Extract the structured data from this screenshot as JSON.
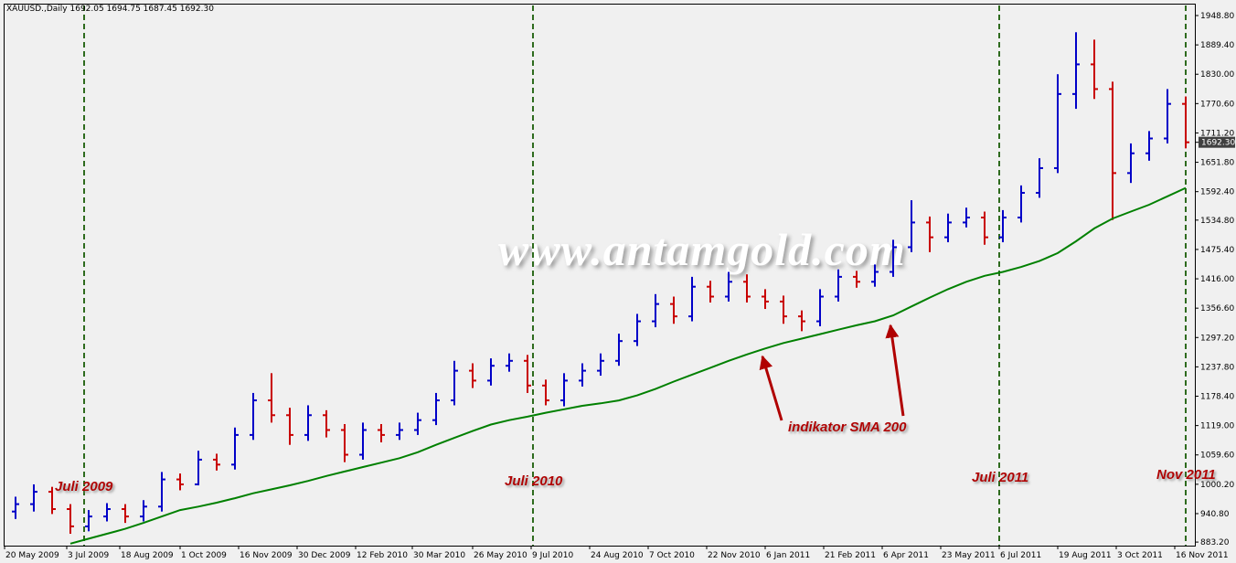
{
  "chart_data": {
    "type": "ohlc",
    "title": "XAUUSD.,Daily  1692.05 1694.75 1687.45 1692.30",
    "x": [
      6,
      16,
      26,
      36,
      46,
      56,
      66,
      76,
      86,
      96,
      106,
      116,
      126,
      136,
      146,
      156,
      166,
      176,
      186,
      196,
      206,
      216,
      226,
      236,
      246,
      256,
      266,
      276,
      286,
      296,
      306,
      316,
      326,
      336,
      346,
      356,
      366,
      376,
      386,
      396,
      406,
      416,
      426,
      436,
      446,
      456,
      466,
      476,
      486,
      496,
      506,
      516,
      526,
      536,
      546,
      556,
      566,
      576,
      586,
      596,
      606,
      616,
      626,
      636,
      646
    ],
    "ohlc": {
      "open": [
        945,
        960,
        985,
        950,
        915,
        935,
        950,
        935,
        955,
        1010,
        1000,
        1050,
        1040,
        1100,
        1170,
        1140,
        1100,
        1140,
        1110,
        1060,
        1110,
        1100,
        1110,
        1130,
        1170,
        1230,
        1210,
        1240,
        1250,
        1200,
        1170,
        1210,
        1230,
        1250,
        1290,
        1330,
        1365,
        1340,
        1400,
        1380,
        1410,
        1380,
        1370,
        1340,
        1330,
        1380,
        1420,
        1410,
        1430,
        1480,
        1530,
        1500,
        1530,
        1540,
        1500,
        1540,
        1590,
        1640,
        1790,
        1850,
        1800,
        1630,
        1670,
        1700,
        1770
      ],
      "high": [
        975,
        1000,
        995,
        960,
        948,
        962,
        960,
        968,
        1025,
        1022,
        1068,
        1062,
        1115,
        1185,
        1225,
        1155,
        1160,
        1150,
        1122,
        1125,
        1122,
        1125,
        1145,
        1185,
        1250,
        1245,
        1255,
        1265,
        1262,
        1212,
        1225,
        1245,
        1265,
        1305,
        1345,
        1385,
        1380,
        1420,
        1412,
        1430,
        1425,
        1395,
        1382,
        1352,
        1395,
        1435,
        1432,
        1445,
        1495,
        1575,
        1542,
        1548,
        1560,
        1552,
        1555,
        1605,
        1660,
        1830,
        1915,
        1900,
        1815,
        1690,
        1715,
        1800,
        1785
      ],
      "low": [
        930,
        945,
        940,
        900,
        905,
        925,
        922,
        925,
        945,
        988,
        998,
        1028,
        1030,
        1090,
        1125,
        1080,
        1088,
        1095,
        1045,
        1050,
        1085,
        1090,
        1100,
        1120,
        1160,
        1195,
        1200,
        1228,
        1185,
        1160,
        1158,
        1198,
        1220,
        1240,
        1280,
        1318,
        1325,
        1330,
        1368,
        1370,
        1368,
        1355,
        1325,
        1310,
        1320,
        1370,
        1398,
        1400,
        1420,
        1470,
        1470,
        1490,
        1520,
        1485,
        1490,
        1530,
        1580,
        1630,
        1760,
        1780,
        1535,
        1610,
        1655,
        1690,
        1680
      ],
      "close": [
        960,
        985,
        950,
        915,
        935,
        950,
        935,
        955,
        1010,
        1000,
        1050,
        1040,
        1100,
        1170,
        1140,
        1100,
        1140,
        1110,
        1060,
        1110,
        1100,
        1110,
        1130,
        1170,
        1230,
        1210,
        1240,
        1250,
        1200,
        1170,
        1210,
        1230,
        1250,
        1290,
        1330,
        1365,
        1340,
        1400,
        1380,
        1410,
        1380,
        1370,
        1340,
        1330,
        1380,
        1420,
        1410,
        1430,
        1480,
        1530,
        1500,
        1530,
        1540,
        1500,
        1540,
        1590,
        1640,
        1790,
        1850,
        1800,
        1630,
        1670,
        1700,
        1770,
        1692.3
      ]
    },
    "up_color": "#0000c8",
    "down_color": "#c80000",
    "sma": {
      "color": "#008000",
      "values": [
        null,
        null,
        null,
        880,
        890,
        900,
        910,
        922,
        935,
        948,
        955,
        963,
        972,
        982,
        990,
        998,
        1007,
        1017,
        1026,
        1035,
        1044,
        1053,
        1065,
        1080,
        1094,
        1108,
        1121,
        1130,
        1137,
        1145,
        1152,
        1159,
        1164,
        1170,
        1180,
        1193,
        1208,
        1222,
        1236,
        1250,
        1263,
        1275,
        1286,
        1295,
        1304,
        1313,
        1322,
        1330,
        1342,
        1360,
        1378,
        1395,
        1410,
        1422,
        1430,
        1440,
        1452,
        1468,
        1492,
        1518,
        1538,
        1552,
        1566,
        1583,
        1600
      ]
    },
    "current_price": {
      "value": 1692.3,
      "label": "1692.30"
    },
    "xlim": [
      0,
      651
    ],
    "ylim": [
      876,
      1971
    ],
    "xticks": [
      {
        "value": 0,
        "label": "20 May 2009"
      },
      {
        "value": 34,
        "label": "3 Jul 2009"
      },
      {
        "value": 63,
        "label": "18 Aug 2009"
      },
      {
        "value": 96,
        "label": "1 Oct 2009"
      },
      {
        "value": 128,
        "label": "16 Nov 2009"
      },
      {
        "value": 160,
        "label": "30 Dec 2009"
      },
      {
        "value": 192,
        "label": "12 Feb 2010"
      },
      {
        "value": 223,
        "label": "30 Mar 2010"
      },
      {
        "value": 256,
        "label": "26 May 2010"
      },
      {
        "value": 288,
        "label": "9 Jul 2010"
      },
      {
        "value": 320,
        "label": "24 Aug 2010"
      },
      {
        "value": 352,
        "label": "7 Oct 2010"
      },
      {
        "value": 384,
        "label": "22 Nov 2010"
      },
      {
        "value": 416,
        "label": "6 Jan 2011"
      },
      {
        "value": 448,
        "label": "21 Feb 2011"
      },
      {
        "value": 480,
        "label": "6 Apr 2011"
      },
      {
        "value": 512,
        "label": "23 May 2011"
      },
      {
        "value": 544,
        "label": "6 Jul 2011"
      },
      {
        "value": 576,
        "label": "19 Aug 2011"
      },
      {
        "value": 608,
        "label": "3 Oct 2011"
      },
      {
        "value": 640,
        "label": "16 Nov 2011"
      }
    ],
    "yticks": [
      {
        "value": 883.2,
        "label": "883.20"
      },
      {
        "value": 940.8,
        "label": "940.80"
      },
      {
        "value": 1000.2,
        "label": "1000.20"
      },
      {
        "value": 1059.6,
        "label": "1059.60"
      },
      {
        "value": 1119,
        "label": "1119.00"
      },
      {
        "value": 1178.4,
        "label": "1178.40"
      },
      {
        "value": 1237.8,
        "label": "1237.80"
      },
      {
        "value": 1297.2,
        "label": "1297.20"
      },
      {
        "value": 1356.6,
        "label": "1356.60"
      },
      {
        "value": 1416,
        "label": "1416.00"
      },
      {
        "value": 1475.4,
        "label": "1475.40"
      },
      {
        "value": 1534.8,
        "label": "1534.80"
      },
      {
        "value": 1592.4,
        "label": "1592.40"
      },
      {
        "value": 1651.8,
        "label": "1651.80"
      },
      {
        "value": 1711.2,
        "label": "1711.20"
      },
      {
        "value": 1770.6,
        "label": "1770.60"
      },
      {
        "value": 1830,
        "label": "1830.00"
      },
      {
        "value": 1889.4,
        "label": "1889.40"
      },
      {
        "value": 1948.8,
        "label": "1948.80"
      }
    ],
    "watermark": "www.antamgold.com",
    "annotations": [
      "Juli 2009",
      "Juli 2010",
      "Juli 2011",
      "Nov 2011",
      "indikator SMA 200"
    ]
  }
}
